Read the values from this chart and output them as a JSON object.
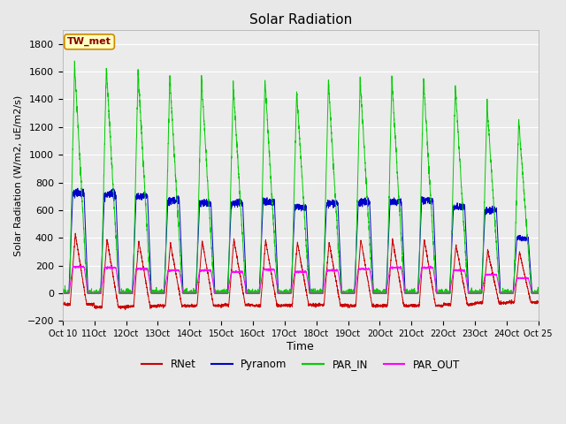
{
  "title": "Solar Radiation",
  "ylabel": "Solar Radiation (W/m2, uE/m2/s)",
  "xlabel": "Time",
  "ylim": [
    -200,
    1900
  ],
  "yticks": [
    -200,
    0,
    200,
    400,
    600,
    800,
    1000,
    1200,
    1400,
    1600,
    1800
  ],
  "num_days": 15,
  "start_day": 10,
  "colors": {
    "RNet": "#cc0000",
    "Pyranom": "#0000cc",
    "PAR_IN": "#00cc00",
    "PAR_OUT": "#ff00ff"
  },
  "legend_label": "TW_met",
  "fig_bg_color": "#e8e8e8",
  "plot_bg_color": "#ebebeb",
  "grid_color": "#ffffff",
  "par_in_peaks": [
    1650,
    1640,
    1600,
    1560,
    1550,
    1510,
    1540,
    1460,
    1530,
    1550,
    1540,
    1550,
    1490,
    1360,
    1250
  ],
  "pyranom_peaks": [
    720,
    710,
    700,
    670,
    650,
    650,
    660,
    620,
    650,
    660,
    660,
    670,
    620,
    600,
    400
  ],
  "rnet_peaks": [
    430,
    390,
    380,
    360,
    380,
    390,
    380,
    370,
    370,
    390,
    390,
    390,
    350,
    310,
    300
  ],
  "par_out_peaks": [
    190,
    185,
    175,
    165,
    165,
    155,
    170,
    155,
    165,
    175,
    185,
    185,
    165,
    135,
    110
  ],
  "rnet_night": [
    -80,
    -100,
    -95,
    -90,
    -90,
    -85,
    -90,
    -85,
    -85,
    -90,
    -90,
    -90,
    -80,
    -70,
    -65
  ]
}
